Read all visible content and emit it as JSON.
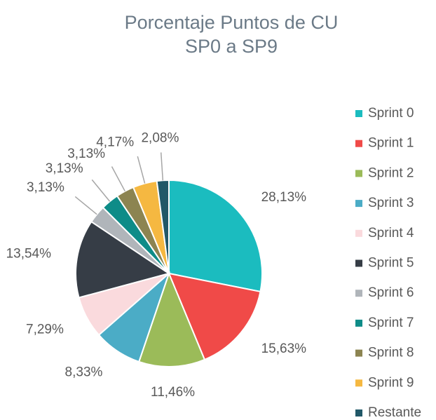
{
  "chart_data": {
    "type": "pie",
    "title": [
      "Porcentaje Puntos de CU",
      "SP0 a SP9"
    ],
    "categories": [
      "Sprint 0",
      "Sprint 1",
      "Sprint 2",
      "Sprint 3",
      "Sprint 4",
      "Sprint 5",
      "Sprint 6",
      "Sprint 7",
      "Sprint 8",
      "Sprint 9",
      "Restante"
    ],
    "values": [
      28.13,
      15.63,
      11.46,
      8.33,
      7.29,
      13.54,
      3.13,
      3.13,
      3.13,
      4.17,
      2.08
    ],
    "value_labels": [
      "28,13%",
      "15,63%",
      "11,46%",
      "8,33%",
      "7,29%",
      "13,54%",
      "3,13%",
      "3,13%",
      "3,13%",
      "4,17%",
      "2,08%"
    ],
    "colors": [
      "#1bbcbf",
      "#f04a48",
      "#9bbb59",
      "#4bacc6",
      "#fadadd",
      "#363d46",
      "#b0b5ba",
      "#0e8c88",
      "#8c8451",
      "#f5b841",
      "#215868"
    ],
    "legend": "right"
  }
}
